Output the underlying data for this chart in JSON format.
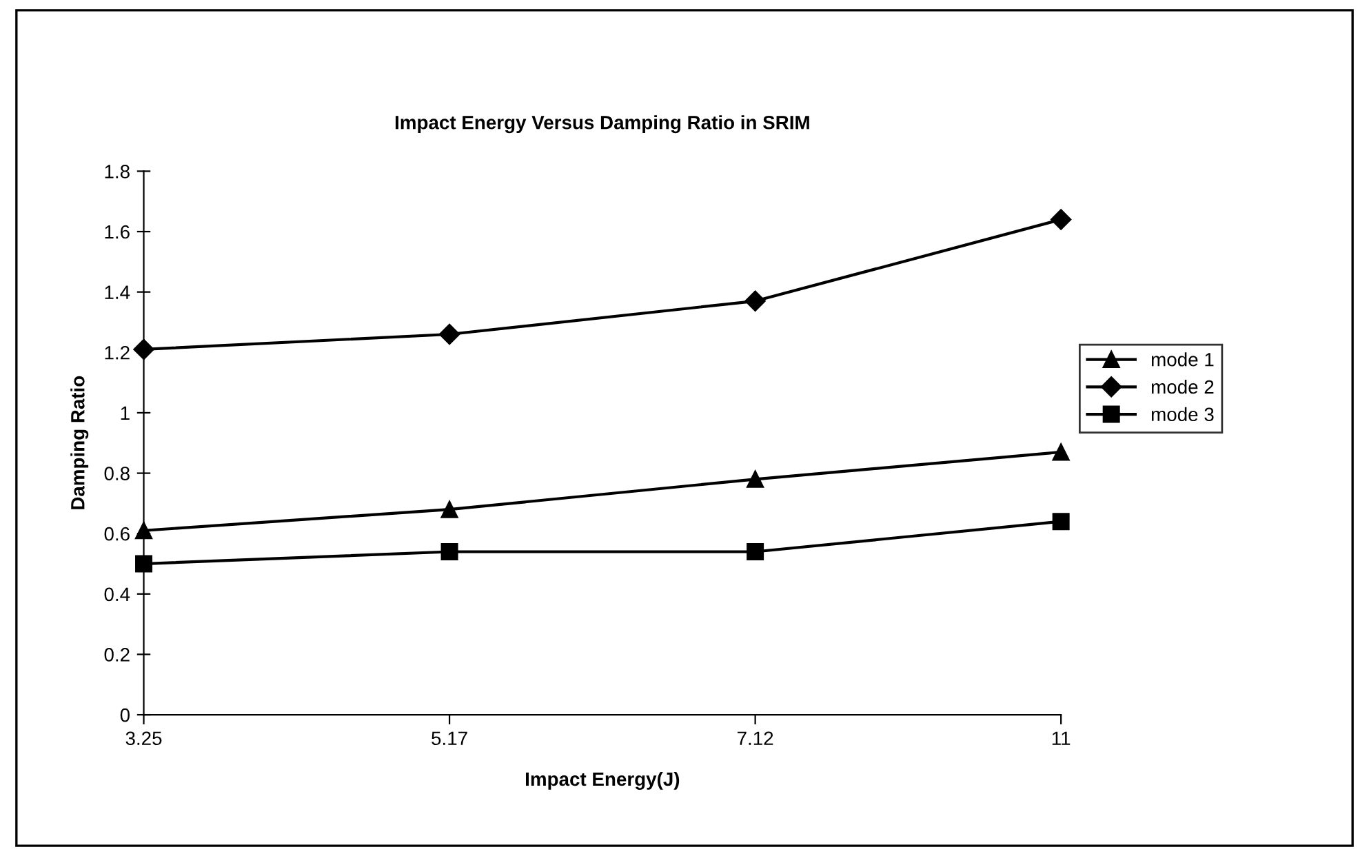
{
  "chart_data": {
    "type": "line",
    "title": "Impact Energy Versus Damping Ratio in SRIM",
    "xlabel": "Impact Energy(J)",
    "ylabel": "Damping Ratio",
    "categories": [
      "3.25",
      "5.17",
      "7.12",
      "11"
    ],
    "series": [
      {
        "name": "mode 1",
        "color": "#000000",
        "marker": "triangle",
        "values": [
          0.61,
          0.68,
          0.78,
          0.87
        ]
      },
      {
        "name": "mode 2",
        "color": "#000000",
        "marker": "diamond",
        "values": [
          1.21,
          1.26,
          1.37,
          1.64
        ]
      },
      {
        "name": "mode 3",
        "color": "#000000",
        "marker": "square",
        "values": [
          0.5,
          0.54,
          0.54,
          0.64
        ]
      }
    ],
    "ylim": [
      0,
      1.8
    ],
    "yticks": [
      0,
      0.2,
      0.4,
      0.6,
      0.8,
      1,
      1.2,
      1.4,
      1.6,
      1.8
    ],
    "grid": false,
    "legend": "right",
    "line_style": "solid"
  }
}
